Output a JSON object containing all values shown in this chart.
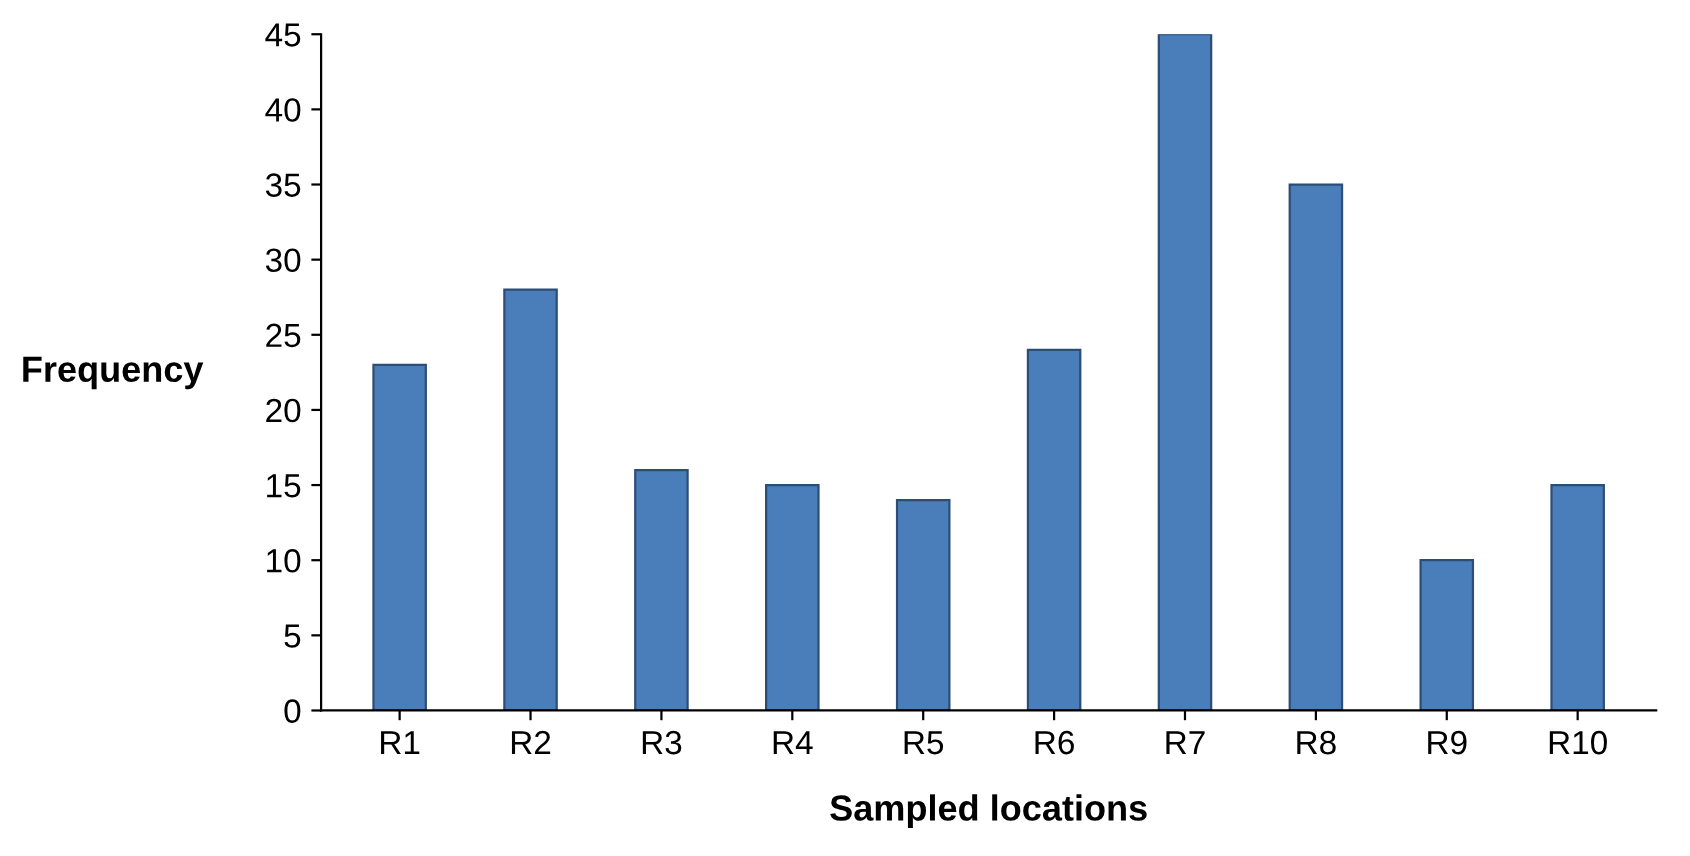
{
  "chart_data": {
    "type": "bar",
    "xlabel": "Sampled locations",
    "ylabel": "Frequency",
    "categories": [
      "R1",
      "R2",
      "R3",
      "R4",
      "R5",
      "R6",
      "R7",
      "R8",
      "R9",
      "R10"
    ],
    "values": [
      23,
      28,
      16,
      15,
      14,
      24,
      45,
      35,
      10,
      15
    ],
    "color": "#4a7ebb",
    "ylim": [
      0,
      45
    ],
    "yticks": [
      0,
      5,
      10,
      15,
      20,
      25,
      30,
      35,
      40,
      45
    ],
    "grid": false
  }
}
